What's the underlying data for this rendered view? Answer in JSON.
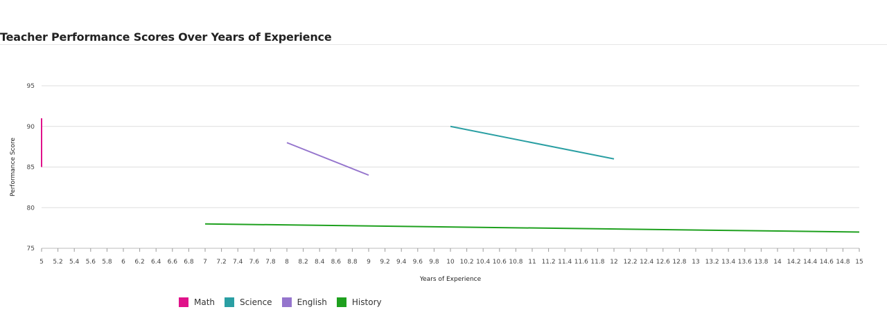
{
  "chart_data": {
    "type": "line",
    "title": "Teacher Performance Scores Over Years of Experience",
    "xlabel": "Years of Experience",
    "ylabel": "Performance Score",
    "xlim": [
      5,
      15
    ],
    "ylim": [
      75,
      95
    ],
    "x_tick_step": 0.2,
    "y_ticks": [
      75,
      80,
      85,
      90,
      95
    ],
    "grid": true,
    "legend_position": "bottom-left",
    "series": [
      {
        "name": "Math",
        "color": "#e0128a",
        "points": [
          [
            5,
            91
          ],
          [
            5,
            85
          ]
        ]
      },
      {
        "name": "Science",
        "color": "#2a9fa3",
        "points": [
          [
            10,
            90
          ],
          [
            12,
            86
          ]
        ]
      },
      {
        "name": "English",
        "color": "#9575cd",
        "points": [
          [
            8,
            88
          ],
          [
            9,
            84
          ]
        ]
      },
      {
        "name": "History",
        "color": "#1ea01e",
        "points": [
          [
            7,
            78
          ],
          [
            15,
            77
          ]
        ]
      }
    ]
  }
}
